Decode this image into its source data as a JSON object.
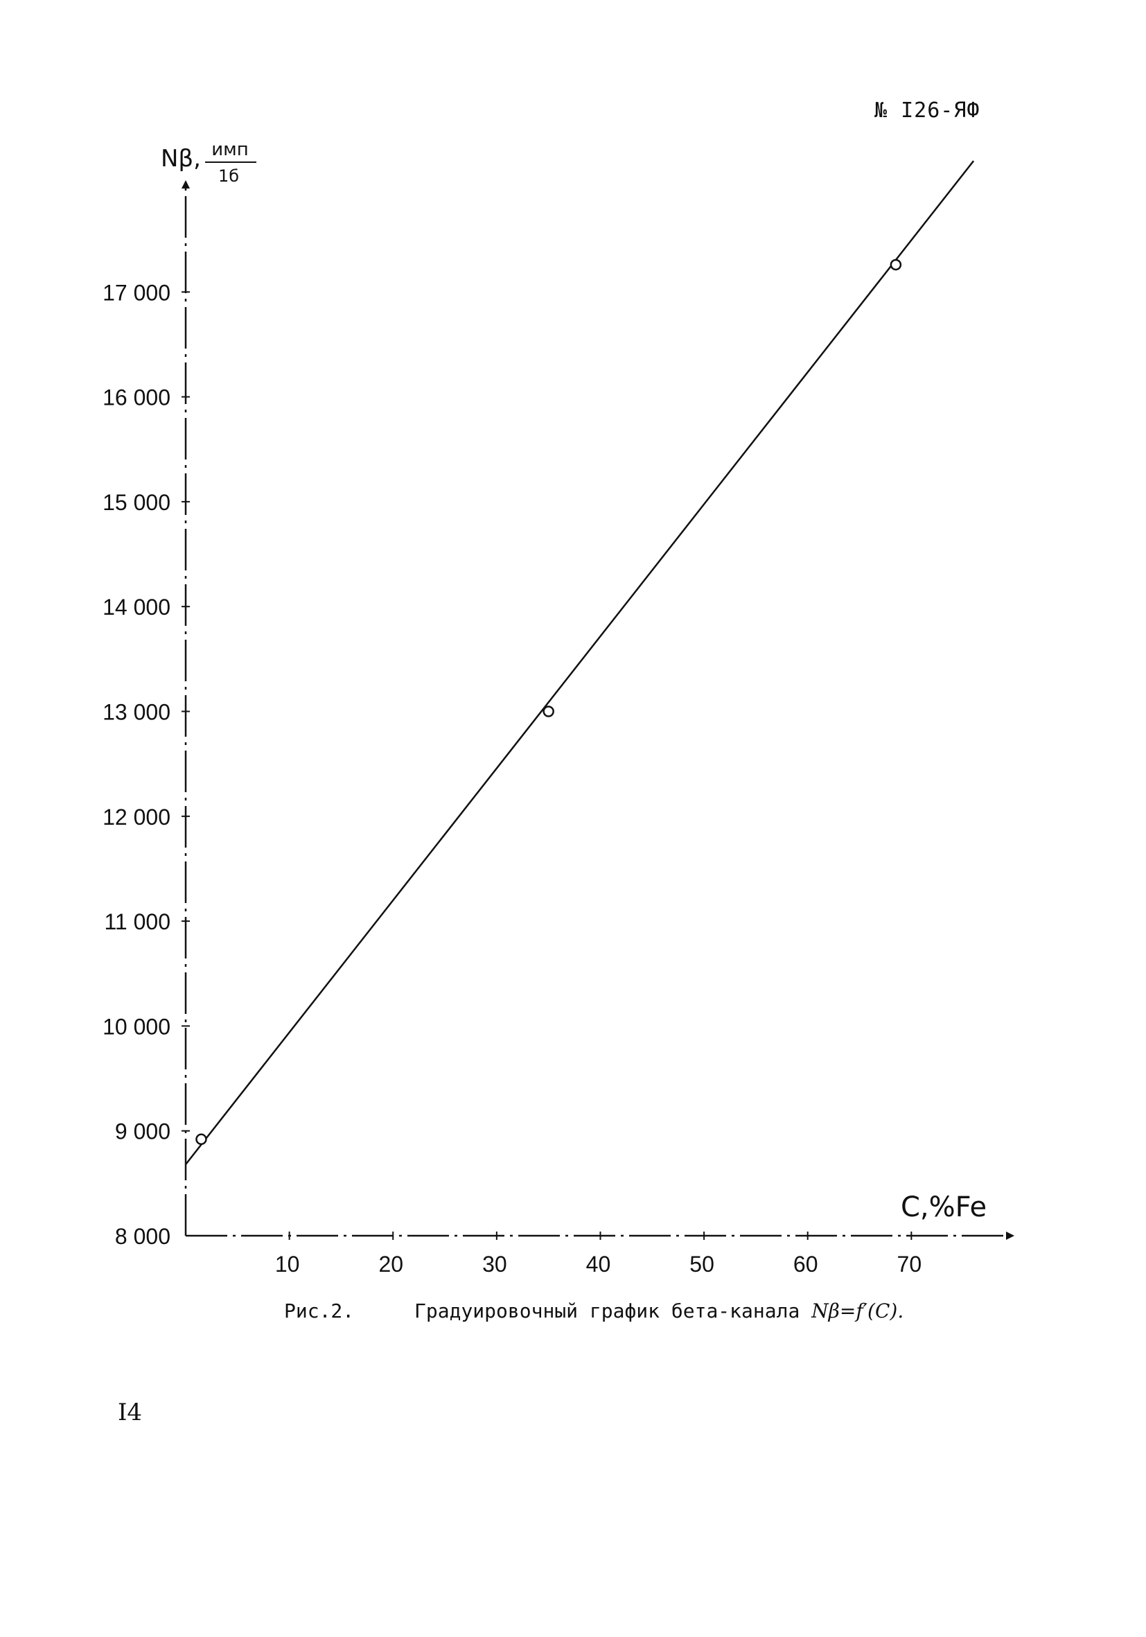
{
  "document": {
    "doc_number": "№ I26-ЯФ",
    "page_number": "I4",
    "caption_label": "Рис.2.",
    "caption_text": "Градуировочный график бета-канала",
    "caption_formula": "Nβ=f′(C)."
  },
  "chart_data": {
    "type": "line",
    "xlabel": "C,%Fe",
    "ylabel_main": "Nβ,",
    "ylabel_unit_top": "имп",
    "ylabel_unit_bottom": "1б",
    "xlim": [
      0,
      79
    ],
    "ylim": [
      8000,
      18000
    ],
    "x_ticks": [
      10,
      20,
      30,
      40,
      50,
      60,
      70
    ],
    "x_tick_labels": [
      "10",
      "20",
      "30",
      "40",
      "50",
      "60",
      "70"
    ],
    "y_ticks": [
      8000,
      9000,
      10000,
      11000,
      12000,
      13000,
      14000,
      15000,
      16000,
      17000
    ],
    "y_tick_labels": [
      "8 000",
      "9 000",
      "10 000",
      "11 000",
      "12 000",
      "13 000",
      "14 000",
      "15 000",
      "16 000",
      "17 000"
    ],
    "series": [
      {
        "type": "scatter",
        "x": [
          1.5,
          35,
          68.5
        ],
        "y": [
          8920,
          13000,
          17260
        ]
      },
      {
        "type": "line",
        "x": [
          0,
          76
        ],
        "y": [
          8680,
          18250
        ]
      }
    ],
    "grid": false,
    "axis_style": "dash-dot"
  }
}
